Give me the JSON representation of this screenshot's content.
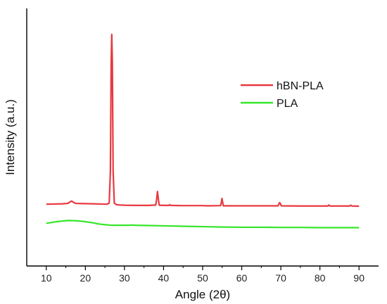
{
  "chart_data": {
    "type": "line",
    "title": "",
    "xlabel": "Angle (2θ)",
    "ylabel": "Intensity (a.u.)",
    "xlim": [
      5,
      95
    ],
    "ylim": [
      0,
      100
    ],
    "x_ticks": [
      10,
      20,
      30,
      40,
      50,
      60,
      70,
      80,
      90
    ],
    "y_ticks_labeled": false,
    "grid": false,
    "legend_position": "center-right",
    "series": [
      {
        "name": "hBN-PLA",
        "color": "#e8393f",
        "points": [
          [
            10,
            13.4
          ],
          [
            12,
            13.5
          ],
          [
            14,
            13.6
          ],
          [
            15.5,
            13.8
          ],
          [
            16.1,
            14.6
          ],
          [
            16.5,
            15.0
          ],
          [
            16.9,
            14.4
          ],
          [
            17.5,
            13.8
          ],
          [
            20,
            13.7
          ],
          [
            22,
            13.6
          ],
          [
            24,
            13.5
          ],
          [
            25.5,
            13.4
          ],
          [
            26.1,
            14.0
          ],
          [
            26.4,
            30.0
          ],
          [
            26.6,
            85.0
          ],
          [
            26.75,
            99.0
          ],
          [
            26.9,
            85.0
          ],
          [
            27.1,
            30.0
          ],
          [
            27.4,
            14.0
          ],
          [
            28,
            13.1
          ],
          [
            30,
            12.9
          ],
          [
            33,
            12.8
          ],
          [
            36,
            12.8
          ],
          [
            38.0,
            13.0
          ],
          [
            38.2,
            15.5
          ],
          [
            38.45,
            19.8
          ],
          [
            38.7,
            15.5
          ],
          [
            38.9,
            12.9
          ],
          [
            40,
            12.8
          ],
          [
            41.4,
            12.8
          ],
          [
            41.6,
            13.2
          ],
          [
            41.8,
            12.8
          ],
          [
            45,
            12.7
          ],
          [
            50,
            12.7
          ],
          [
            51,
            12.6
          ],
          [
            54.6,
            12.7
          ],
          [
            54.8,
            14.5
          ],
          [
            54.95,
            16.3
          ],
          [
            55.1,
            14.5
          ],
          [
            55.3,
            12.6
          ],
          [
            58,
            12.6
          ],
          [
            62,
            12.6
          ],
          [
            66,
            12.6
          ],
          [
            69.3,
            12.6
          ],
          [
            69.5,
            13.6
          ],
          [
            69.7,
            14.2
          ],
          [
            69.9,
            13.6
          ],
          [
            70.1,
            12.6
          ],
          [
            75,
            12.5
          ],
          [
            82.0,
            12.5
          ],
          [
            82.3,
            13.0
          ],
          [
            82.6,
            12.5
          ],
          [
            87.6,
            12.5
          ],
          [
            87.9,
            12.9
          ],
          [
            88.2,
            12.5
          ],
          [
            90,
            12.4
          ]
        ]
      },
      {
        "name": "PLA",
        "color": "#35e62a",
        "points": [
          [
            10,
            3.8
          ],
          [
            11,
            4.1
          ],
          [
            12,
            4.4
          ],
          [
            13,
            4.7
          ],
          [
            14,
            4.9
          ],
          [
            15,
            5.1
          ],
          [
            16,
            5.2
          ],
          [
            17,
            5.1
          ],
          [
            18,
            5.0
          ],
          [
            19,
            4.8
          ],
          [
            20,
            4.6
          ],
          [
            21,
            4.3
          ],
          [
            22,
            4.0
          ],
          [
            23,
            3.6
          ],
          [
            24,
            3.3
          ],
          [
            25,
            3.1
          ],
          [
            26,
            2.9
          ],
          [
            27,
            2.8
          ],
          [
            28,
            2.8
          ],
          [
            29,
            2.8
          ],
          [
            30,
            2.8
          ],
          [
            31,
            2.8
          ],
          [
            32,
            2.9
          ],
          [
            33,
            2.8
          ],
          [
            35,
            2.7
          ],
          [
            40,
            2.5
          ],
          [
            45,
            2.3
          ],
          [
            50,
            2.1
          ],
          [
            55,
            1.9
          ],
          [
            60,
            1.8
          ],
          [
            65,
            1.8
          ],
          [
            70,
            1.7
          ],
          [
            75,
            1.7
          ],
          [
            80,
            1.6
          ],
          [
            85,
            1.6
          ],
          [
            90,
            1.6
          ]
        ]
      }
    ]
  }
}
